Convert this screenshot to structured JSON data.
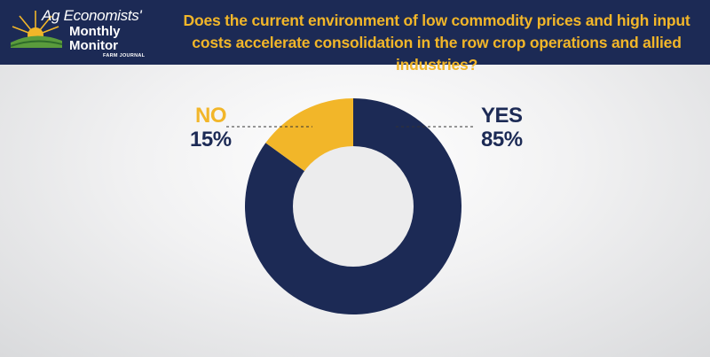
{
  "header": {
    "logo_line1": "Ag Economists'",
    "logo_line2": "Monthly",
    "logo_line3": "Monitor",
    "logo_sub": "FARM JOURNAL",
    "question": "Does the current environment of low commodity prices and high input costs accelerate consolidation in the row crop operations and allied industries?"
  },
  "colors": {
    "navy": "#1c2a55",
    "gold": "#f2b629"
  },
  "chart_data": {
    "type": "pie",
    "variant": "donut",
    "title": "Does the current environment of low commodity prices and high input costs accelerate consolidation in the row crop operations and allied industries?",
    "slices": [
      {
        "label": "YES",
        "value": 85,
        "value_label": "85%",
        "color": "#1c2a55"
      },
      {
        "label": "NO",
        "value": 15,
        "value_label": "15%",
        "color": "#f2b629"
      }
    ]
  }
}
